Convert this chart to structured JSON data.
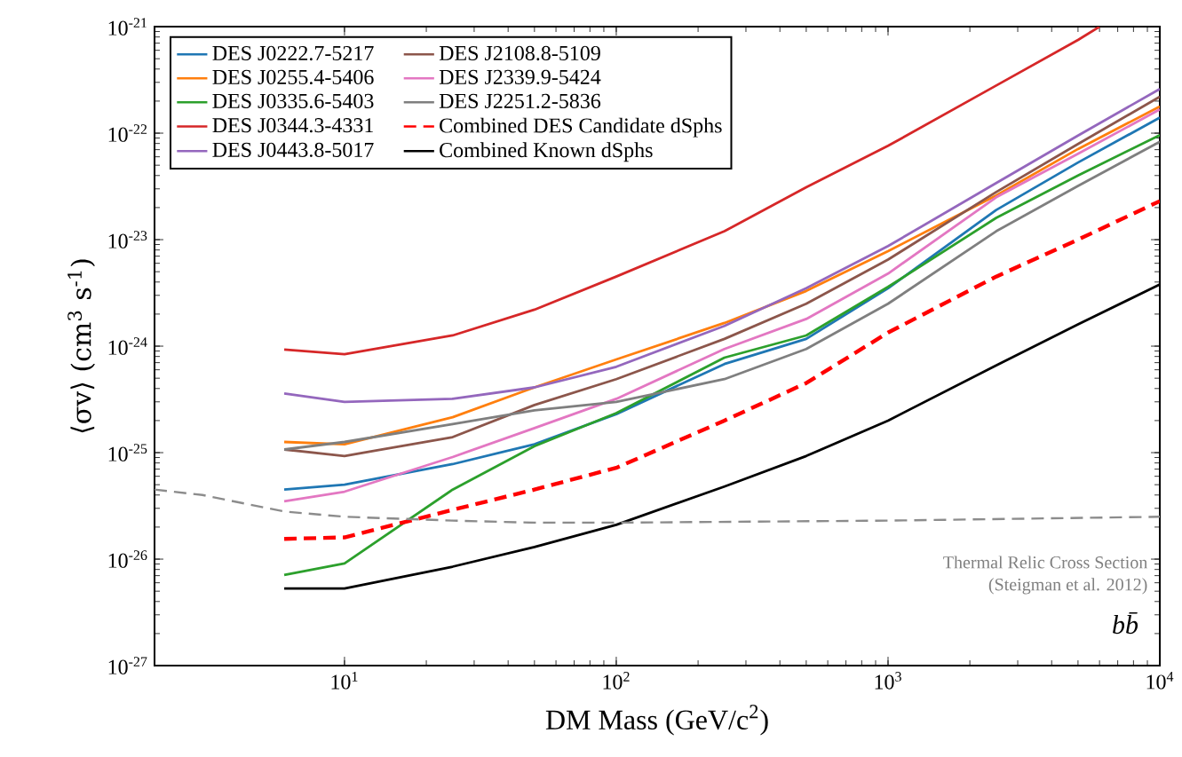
{
  "chart_data": {
    "type": "line",
    "xlabel": "DM Mass (GeV/c$^{2}$)",
    "ylabel": "⟨σv⟩ (cm$^{3}$ s$^{-1}$)",
    "log": "xy",
    "grid": false,
    "legend": "top left",
    "marker": "none",
    "xlim": [
      2,
      10000
    ],
    "ylim": [
      1e-27,
      1e-21
    ],
    "xticks": [
      {
        "value": 10,
        "label": "10$^{1}$"
      },
      {
        "value": 100,
        "label": "10$^{2}$"
      },
      {
        "value": 1000,
        "label": "10$^{3}$"
      },
      {
        "value": 10000,
        "label": "10$^{4}$"
      }
    ],
    "yticks": [
      {
        "value": 1e-27,
        "label": "10$^{-27}$"
      },
      {
        "value": 1e-26,
        "label": "10$^{-26}$"
      },
      {
        "value": 1e-25,
        "label": "10$^{-25}$"
      },
      {
        "value": 1e-24,
        "label": "10$^{-24}$"
      },
      {
        "value": 1e-23,
        "label": "10$^{-23}$"
      },
      {
        "value": 1e-22,
        "label": "10$^{-22}$"
      },
      {
        "value": 1e-21,
        "label": "10$^{-21}$"
      }
    ],
    "x": [
      6,
      10,
      25,
      50,
      100,
      250,
      500,
      1000,
      2500,
      5000,
      10000
    ],
    "series": [
      {
        "name": "DES J0222.7-5217",
        "color": "#1f77b4",
        "line_style": "solid",
        "values": [
          4.5e-26,
          5e-26,
          7.8e-26,
          1.2e-25,
          2.3e-25,
          6.8e-25,
          1.17e-24,
          3.5e-24,
          1.9e-23,
          5.3e-23,
          1.4e-22
        ]
      },
      {
        "name": "DES J0255.4-5406",
        "color": "#ff7f0e",
        "line_style": "solid",
        "values": [
          1.26e-25,
          1.2e-25,
          2.15e-25,
          4.1e-25,
          7.5e-25,
          1.65e-24,
          3.3e-24,
          7.8e-24,
          2.6e-23,
          7.1e-23,
          1.78e-22
        ]
      },
      {
        "name": "DES J0335.6-5403",
        "color": "#2ca02c",
        "line_style": "solid",
        "values": [
          7.1e-27,
          9.1e-27,
          4.5e-26,
          1.15e-25,
          2.35e-25,
          7.8e-25,
          1.26e-24,
          3.6e-24,
          1.6e-23,
          4e-23,
          9.6e-23
        ]
      },
      {
        "name": "DES J0344.3-4331",
        "color": "#d62728",
        "line_style": "solid",
        "x": [
          6,
          10,
          25,
          50,
          100,
          250,
          500,
          1000,
          2500,
          5000,
          6000
        ],
        "values": [
          9.3e-25,
          8.4e-25,
          1.26e-24,
          2.2e-24,
          4.5e-24,
          1.2e-23,
          3.1e-23,
          7.6e-23,
          2.8e-22,
          7.5e-22,
          1e-21
        ]
      },
      {
        "name": "DES J0443.8-5017",
        "color": "#9467bd",
        "line_style": "solid",
        "values": [
          3.6e-25,
          3e-25,
          3.2e-25,
          4.1e-25,
          6.4e-25,
          1.55e-24,
          3.5e-24,
          8.7e-24,
          3.4e-23,
          9.5e-23,
          2.6e-22
        ]
      },
      {
        "name": "DES J2108.8-5109",
        "color": "#8c564b",
        "line_style": "solid",
        "values": [
          1.07e-25,
          9.3e-26,
          1.4e-25,
          2.8e-25,
          4.9e-25,
          1.17e-24,
          2.5e-24,
          6.5e-24,
          2.8e-23,
          7.9e-23,
          2.2e-22
        ]
      },
      {
        "name": "DES J2339.9-5424",
        "color": "#e377c2",
        "line_style": "solid",
        "values": [
          3.5e-26,
          4.3e-26,
          9.1e-26,
          1.7e-25,
          3.2e-25,
          9.4e-25,
          1.8e-24,
          4.8e-24,
          2.5e-23,
          6.4e-23,
          1.67e-22
        ]
      },
      {
        "name": "DES J2251.2-5836",
        "color": "#7f7f7f",
        "line_style": "solid",
        "values": [
          1.07e-25,
          1.26e-25,
          1.85e-25,
          2.5e-25,
          3e-25,
          4.9e-25,
          9.4e-25,
          2.5e-24,
          1.2e-23,
          3.2e-23,
          8.3e-23
        ]
      },
      {
        "name": "Combined DES Candidate dSphs",
        "color": "#ff0000",
        "line_style": "dashed",
        "values": [
          1.55e-26,
          1.6e-26,
          2.9e-26,
          4.5e-26,
          7.2e-26,
          2e-25,
          4.5e-25,
          1.34e-24,
          4.5e-24,
          1e-23,
          2.3e-23
        ]
      },
      {
        "name": "Combined Known dSphs",
        "color": "#000000",
        "line_style": "solid",
        "values": [
          5.3e-27,
          5.3e-27,
          8.5e-27,
          1.3e-26,
          2.1e-26,
          4.8e-26,
          9.3e-26,
          2e-25,
          6.6e-25,
          1.6e-24,
          3.8e-24
        ]
      },
      {
        "color": "#8c8c8c",
        "line_style": "dashed",
        "x": [
          2,
          3,
          6,
          10,
          25,
          50,
          100,
          1000,
          10000
        ],
        "values": [
          4.5e-26,
          4e-26,
          2.8e-26,
          2.5e-26,
          2.3e-26,
          2.2e-26,
          2.2e-26,
          2.3e-26,
          2.5e-26
        ]
      }
    ],
    "annotations": [
      "Thermal Relic Cross Section",
      "(Steigman et al. 2012)",
      "bb̄"
    ]
  }
}
